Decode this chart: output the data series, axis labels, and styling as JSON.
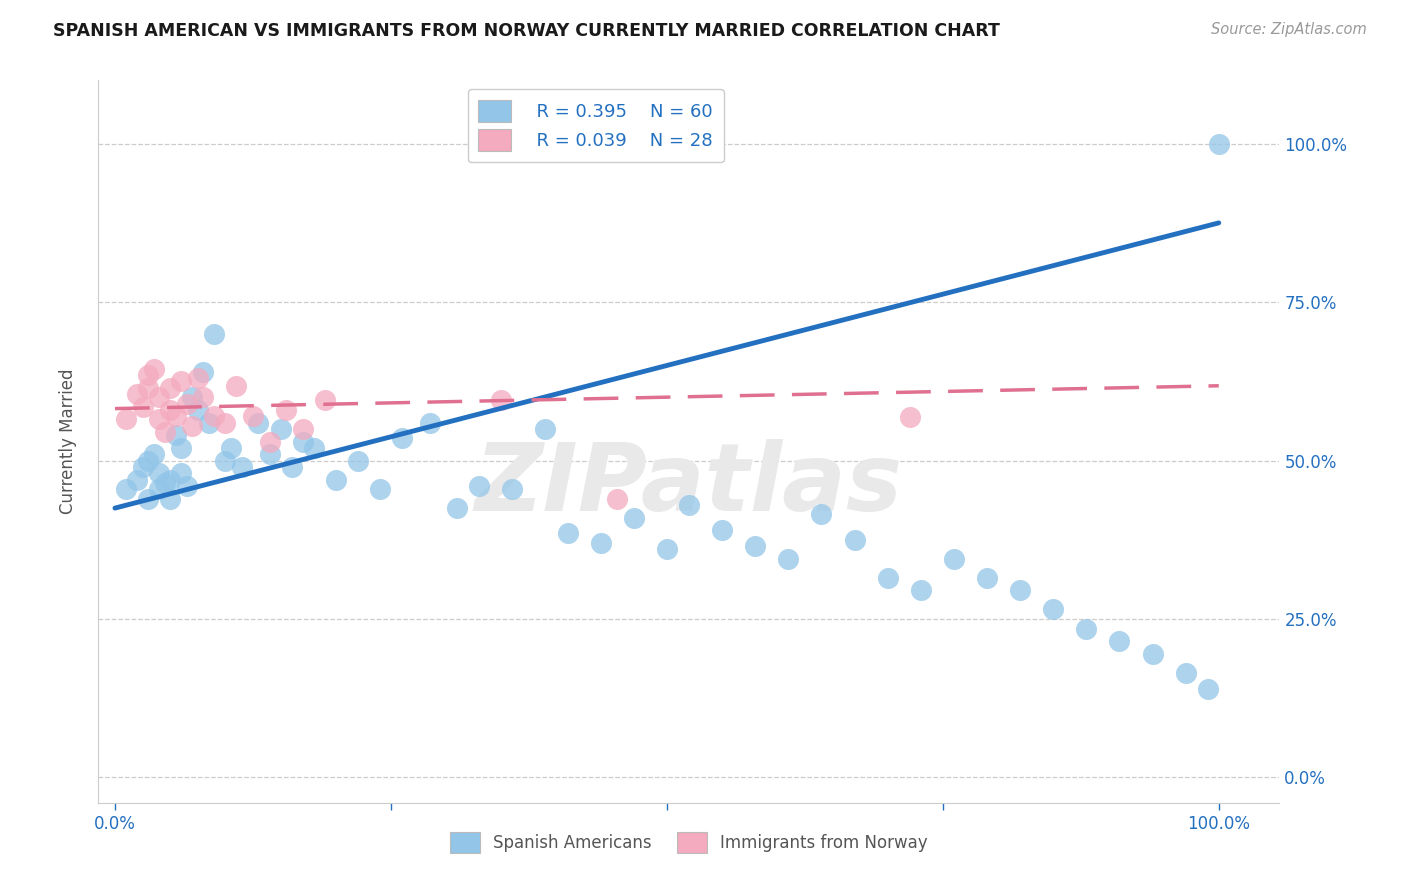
{
  "title": "SPANISH AMERICAN VS IMMIGRANTS FROM NORWAY CURRENTLY MARRIED CORRELATION CHART",
  "source": "Source: ZipAtlas.com",
  "ylabel": "Currently Married",
  "legend_blue_r": "R = 0.395",
  "legend_blue_n": "N = 60",
  "legend_pink_r": "R = 0.039",
  "legend_pink_n": "N = 28",
  "legend_blue_label": "Spanish Americans",
  "legend_pink_label": "Immigrants from Norway",
  "blue_color": "#92c5e8",
  "pink_color": "#f4aabf",
  "blue_line_color": "#2470c0",
  "pink_line_color": "#e07090",
  "r_n_color": "#2470c0",
  "watermark": "ZIPatlas",
  "blue_x": [
    0.01,
    0.02,
    0.025,
    0.03,
    0.03,
    0.035,
    0.04,
    0.04,
    0.045,
    0.05,
    0.05,
    0.055,
    0.06,
    0.06,
    0.065,
    0.07,
    0.075,
    0.08,
    0.085,
    0.09,
    0.1,
    0.105,
    0.115,
    0.13,
    0.14,
    0.15,
    0.16,
    0.17,
    0.18,
    0.2,
    0.22,
    0.24,
    0.26,
    0.285,
    0.31,
    0.33,
    0.36,
    0.39,
    0.41,
    0.44,
    0.47,
    0.5,
    0.52,
    0.55,
    0.58,
    0.61,
    0.64,
    0.67,
    0.7,
    0.73,
    0.76,
    0.79,
    0.82,
    0.85,
    0.88,
    0.91,
    0.94,
    0.97,
    0.99,
    1.0
  ],
  "blue_y": [
    0.455,
    0.47,
    0.49,
    0.44,
    0.5,
    0.51,
    0.455,
    0.48,
    0.465,
    0.44,
    0.47,
    0.54,
    0.48,
    0.52,
    0.46,
    0.6,
    0.58,
    0.64,
    0.56,
    0.7,
    0.5,
    0.52,
    0.49,
    0.56,
    0.51,
    0.55,
    0.49,
    0.53,
    0.52,
    0.47,
    0.5,
    0.455,
    0.535,
    0.56,
    0.425,
    0.46,
    0.455,
    0.55,
    0.385,
    0.37,
    0.41,
    0.36,
    0.43,
    0.39,
    0.365,
    0.345,
    0.415,
    0.375,
    0.315,
    0.295,
    0.345,
    0.315,
    0.295,
    0.265,
    0.235,
    0.215,
    0.195,
    0.165,
    0.14,
    1.0
  ],
  "pink_x": [
    0.01,
    0.02,
    0.025,
    0.03,
    0.03,
    0.035,
    0.04,
    0.04,
    0.045,
    0.05,
    0.05,
    0.055,
    0.06,
    0.065,
    0.07,
    0.075,
    0.08,
    0.09,
    0.1,
    0.11,
    0.125,
    0.14,
    0.155,
    0.17,
    0.19,
    0.35,
    0.455,
    0.72
  ],
  "pink_y": [
    0.565,
    0.605,
    0.585,
    0.615,
    0.635,
    0.645,
    0.565,
    0.6,
    0.545,
    0.58,
    0.615,
    0.57,
    0.625,
    0.59,
    0.555,
    0.63,
    0.6,
    0.57,
    0.56,
    0.618,
    0.57,
    0.53,
    0.58,
    0.55,
    0.595,
    0.595,
    0.44,
    0.568
  ],
  "blue_line": [
    0.0,
    0.425,
    1.0,
    0.875
  ],
  "pink_line": [
    0.0,
    0.582,
    1.0,
    0.618
  ],
  "xtick_positions": [
    0.0,
    0.25,
    0.5,
    0.75,
    1.0
  ],
  "xtick_labels": [
    "0.0%",
    "",
    "",
    "",
    "100.0%"
  ],
  "ytick_positions": [
    0.0,
    0.25,
    0.5,
    0.75,
    1.0
  ],
  "ytick_labels": [
    "0.0%",
    "25.0%",
    "50.0%",
    "75.0%",
    "100.0%"
  ]
}
